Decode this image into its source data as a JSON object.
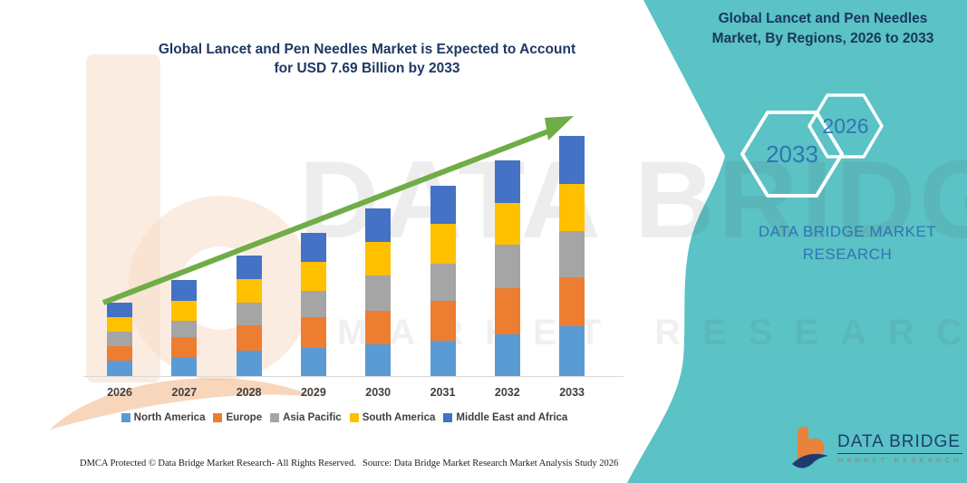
{
  "header": {
    "chart_title_line1": "Global Lancet and Pen Needles Market is Expected to Account",
    "chart_title_line2": "for USD 7.69 Billion by 2033",
    "panel_title_line1": "Global Lancet and Pen Needles",
    "panel_title_line2": "Market, By Regions, 2026 to 2033"
  },
  "side_panel": {
    "hexagon_back_label": "2033",
    "hexagon_front_label": "2026",
    "brand_text_line1": "DATA BRIDGE MARKET",
    "brand_text_line2": "RESEARCH",
    "logo_wordmark": "DATA BRIDGE",
    "logo_subtitle": "MARKET RESEARCH"
  },
  "watermark": {
    "row1": "DATA BRIDGE",
    "row2": "MARKET RESEARCH"
  },
  "colors": {
    "band_teal": "#5BC2C5",
    "title_navy": "#1F3864",
    "panel_text_blue": "#2E75B6",
    "trend_arrow_green": "#6FAD46",
    "logo_orange": "#E8823D",
    "logo_navy": "#1E3A6E"
  },
  "chart_data": {
    "type": "bar",
    "stacked": true,
    "title": "Global Lancet and Pen Needles Market is Expected to Account for USD 7.69 Billion by 2033",
    "categories": [
      "2026",
      "2027",
      "2028",
      "2029",
      "2030",
      "2031",
      "2032",
      "2033"
    ],
    "series": [
      {
        "name": "North America",
        "color": "#5B9BD5",
        "values": [
          0.5,
          0.61,
          0.82,
          0.9,
          1.02,
          1.14,
          1.34,
          1.6
        ]
      },
      {
        "name": "Europe",
        "color": "#ED7D31",
        "values": [
          0.47,
          0.64,
          0.79,
          0.99,
          1.08,
          1.28,
          1.46,
          1.57
        ]
      },
      {
        "name": "Asia Pacific",
        "color": "#A5A5A5",
        "values": [
          0.44,
          0.52,
          0.73,
          0.84,
          1.11,
          1.17,
          1.4,
          1.46
        ]
      },
      {
        "name": "South America",
        "color": "#FFC000",
        "values": [
          0.47,
          0.64,
          0.76,
          0.93,
          1.08,
          1.28,
          1.34,
          1.51
        ]
      },
      {
        "name": "Middle East and Africa",
        "color": "#4472C4",
        "values": [
          0.47,
          0.67,
          0.76,
          0.93,
          1.08,
          1.22,
          1.37,
          1.55
        ]
      }
    ],
    "totals": [
      2.35,
      3.08,
      3.86,
      4.59,
      5.37,
      6.09,
      6.91,
      7.69
    ],
    "values_unit": "USD billion (estimated from bar heights; final 2033 total 7.69 stated in title)",
    "xlabel": "",
    "ylabel": "",
    "ylim": [
      0,
      8
    ],
    "grid": false,
    "y_axis_shown": false,
    "legend_position": "bottom",
    "annotations": [
      "green upward trend arrow across bar tops"
    ]
  },
  "footer": {
    "left": "DMCA Protected © Data Bridge Market Research-  All Rights Reserved.",
    "right": "Source: Data Bridge Market Research  Market Analysis Study 2026"
  }
}
